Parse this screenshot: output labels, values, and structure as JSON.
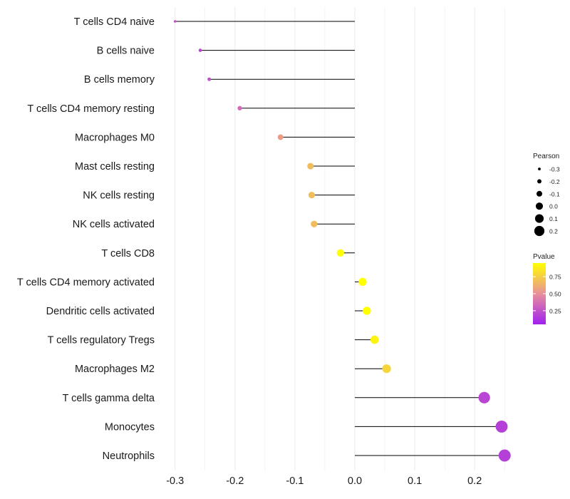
{
  "chart_data": {
    "type": "lollipop",
    "title": "",
    "xlabel": "",
    "ylabel": "",
    "xlim": [
      -0.31,
      0.26
    ],
    "x_ticks": [
      -0.3,
      -0.2,
      -0.1,
      0.0,
      0.1,
      0.2
    ],
    "x_tick_labels": [
      "-0.3",
      "-0.2",
      "-0.1",
      "0.0",
      "0.1",
      "0.2"
    ],
    "grid": true,
    "categories": [
      "T cells CD4 naive",
      "B cells naive",
      "B cells memory",
      "T cells CD4 memory resting",
      "Macrophages M0",
      "Mast cells resting",
      "NK cells resting",
      "NK cells activated",
      "T cells CD8",
      "T cells CD4 memory activated",
      "Dendritic cells activated",
      "T cells regulatory  Tregs",
      "Macrophages M2",
      "T cells gamma delta",
      "Monocytes",
      "Neutrophils"
    ],
    "values": [
      -0.3,
      -0.258,
      -0.243,
      -0.192,
      -0.124,
      -0.074,
      -0.072,
      -0.068,
      -0.024,
      0.013,
      0.02,
      0.033,
      0.053,
      0.216,
      0.245,
      0.25
    ],
    "pvalues": [
      0.25,
      0.2,
      0.25,
      0.35,
      0.55,
      0.68,
      0.68,
      0.68,
      0.95,
      0.95,
      0.95,
      0.9,
      0.78,
      0.2,
      0.18,
      0.18
    ],
    "legend_size": {
      "title": "Pearson",
      "values": [
        -0.3,
        -0.2,
        -0.1,
        0.0,
        0.1,
        0.2
      ],
      "labels": [
        "-0.3",
        "-0.2",
        "-0.1",
        "0.0",
        "0.1",
        "0.2"
      ]
    },
    "legend_color": {
      "title": "Pvalue",
      "range": [
        0.05,
        0.95
      ],
      "ticks": [
        0.25,
        0.5,
        0.75
      ],
      "tick_labels": [
        "0.25",
        "0.50",
        "0.75"
      ],
      "low_color": "#a020f0",
      "mid_color": "#e8909a",
      "high_color": "#ffff00"
    },
    "legend_position": "right"
  }
}
